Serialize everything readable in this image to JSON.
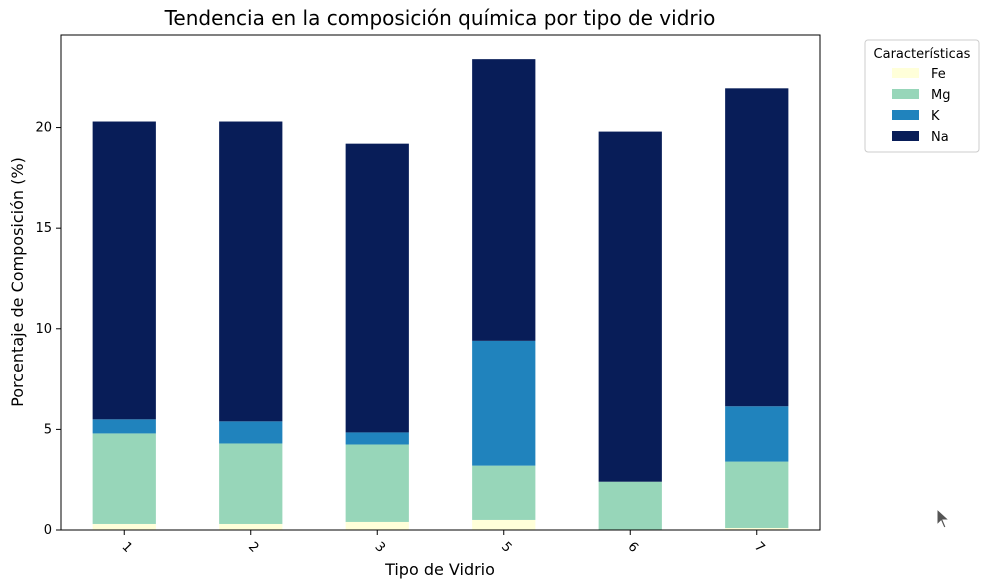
{
  "chart_data": {
    "type": "bar",
    "stacked": true,
    "title": "Tendencia en la composición química por tipo de vidrio",
    "xlabel": "Tipo de Vidrio",
    "ylabel": "Porcentaje de Composición (%)",
    "categories": [
      "1",
      "2",
      "3",
      "5",
      "6",
      "7"
    ],
    "ylim": [
      0,
      24.6
    ],
    "yticks": [
      0,
      5,
      10,
      15,
      20
    ],
    "grid": false,
    "legend": {
      "title": "Características",
      "placement": "outside-top-right"
    },
    "series": [
      {
        "name": "Fe",
        "color": "#ffffd9",
        "values": [
          0.3,
          0.3,
          0.4,
          0.5,
          0.0,
          0.1
        ]
      },
      {
        "name": "Mg",
        "color": "#97d6b9",
        "values": [
          4.5,
          4.0,
          3.85,
          2.7,
          2.4,
          3.3
        ]
      },
      {
        "name": "K",
        "color": "#2083bd",
        "values": [
          0.7,
          1.1,
          0.6,
          6.2,
          0.0,
          2.75
        ]
      },
      {
        "name": "Na",
        "color": "#081d58",
        "values": [
          14.8,
          14.9,
          14.35,
          14.0,
          17.4,
          15.8
        ]
      }
    ]
  },
  "cursor": {
    "icon": "mouse-pointer-icon"
  }
}
